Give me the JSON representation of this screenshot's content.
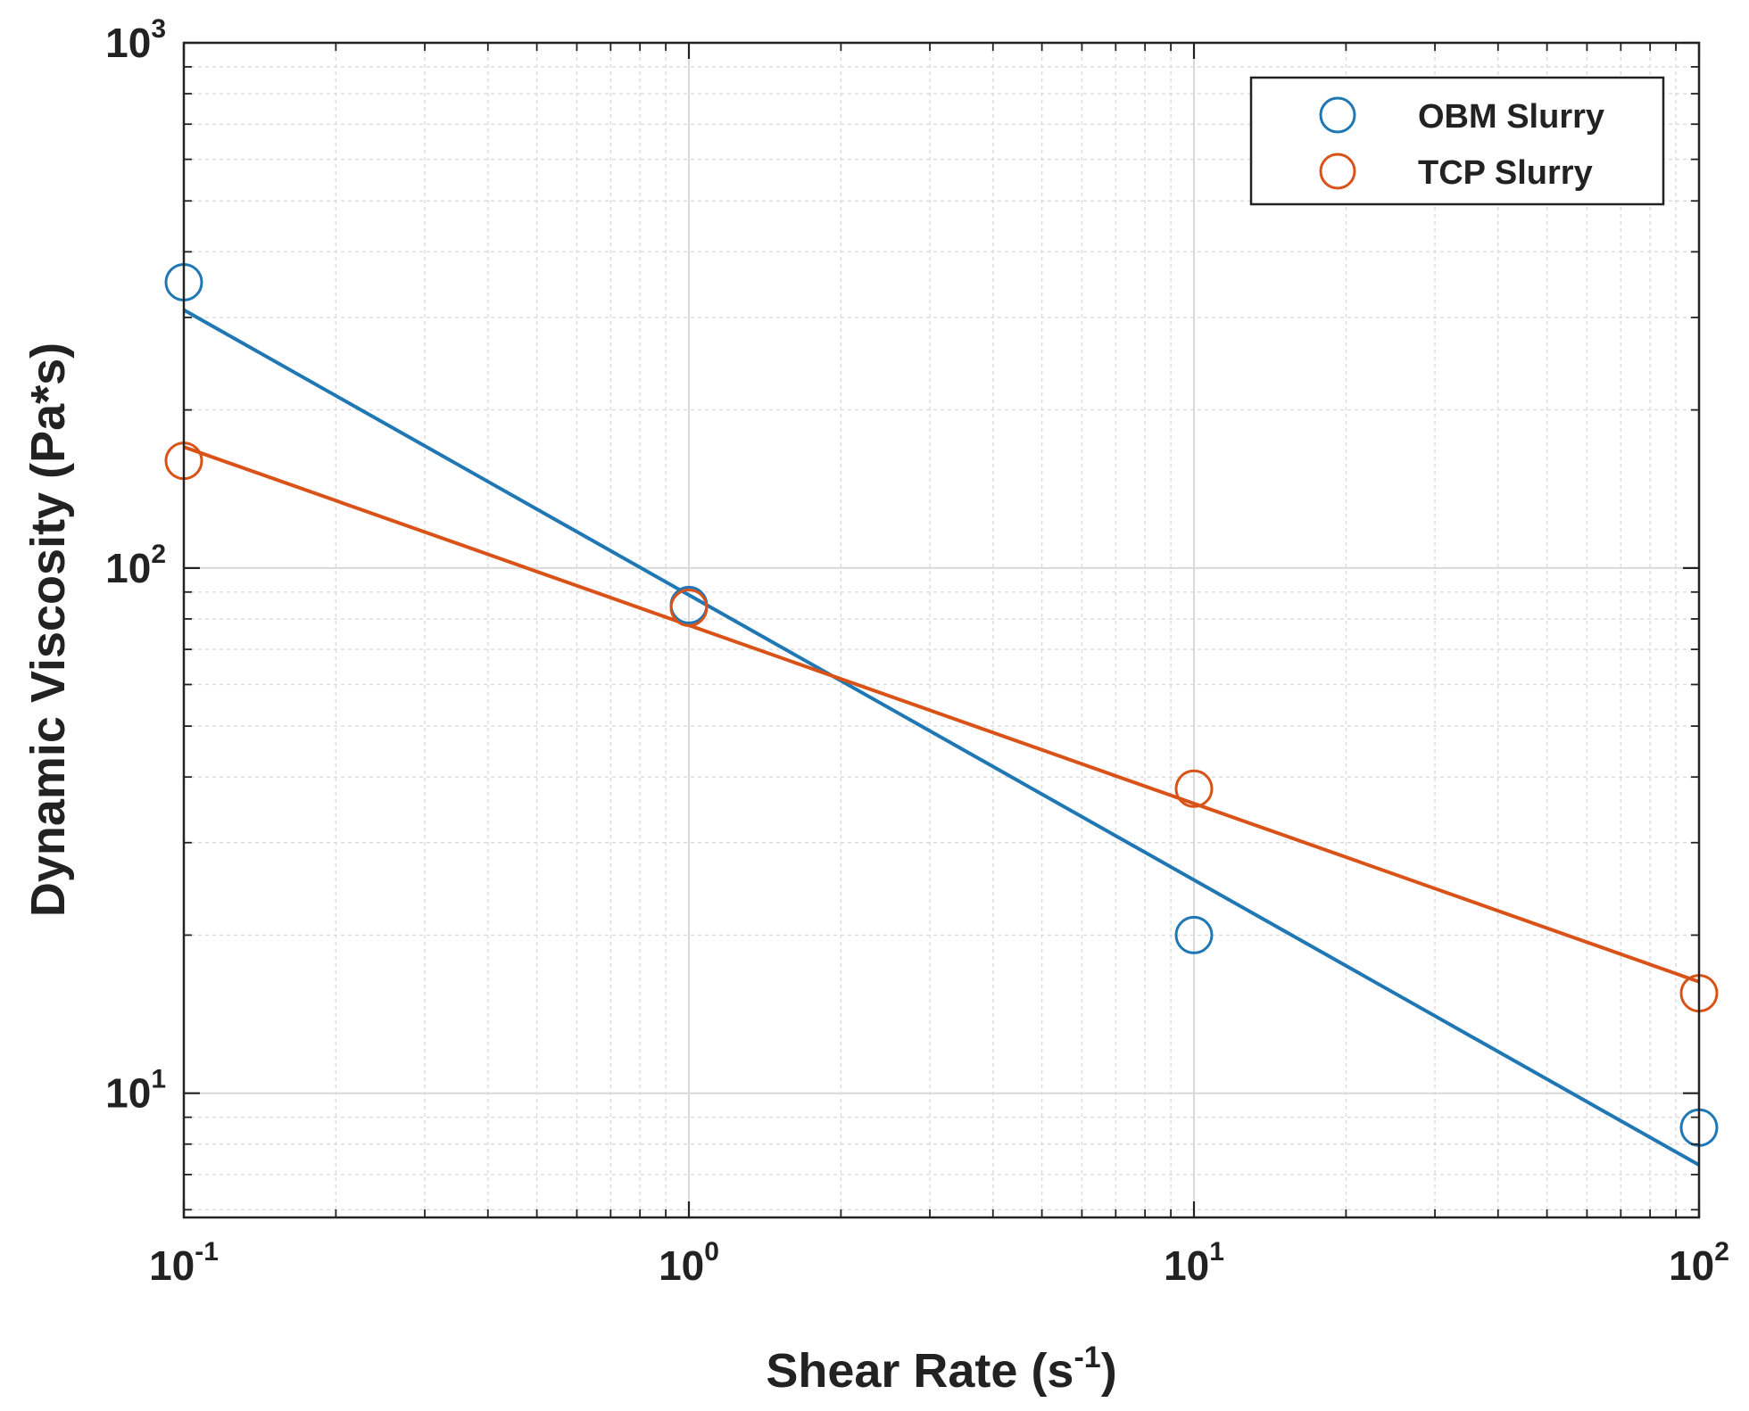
{
  "chart_data": {
    "type": "scatter",
    "title": "",
    "xlabel": "Shear Rate (s",
    "xlabel_exponent": "-1",
    "xlabel_suffix": ")",
    "ylabel": "Dynamic Viscosity (Pa*s)",
    "xscale": "log",
    "yscale": "log",
    "xlim": [
      0.1,
      100
    ],
    "ylim": [
      5.8,
      1000
    ],
    "grid": true,
    "minor_grid": true,
    "legend_position": "top-right",
    "x_ticks": [
      {
        "value": 0.1,
        "base": "10",
        "exp": "-1"
      },
      {
        "value": 1,
        "base": "10",
        "exp": "0"
      },
      {
        "value": 10,
        "base": "10",
        "exp": "1"
      },
      {
        "value": 100,
        "base": "10",
        "exp": "2"
      }
    ],
    "y_ticks": [
      {
        "value": 10,
        "base": "10",
        "exp": "1"
      },
      {
        "value": 100,
        "base": "10",
        "exp": "2"
      },
      {
        "value": 1000,
        "base": "10",
        "exp": "3"
      }
    ],
    "series": [
      {
        "name": "OBM Slurry",
        "color": "#1f77b4",
        "x": [
          0.1,
          1,
          10,
          100
        ],
        "y": [
          350,
          85,
          20,
          8.6
        ],
        "fit": {
          "x": [
            0.1,
            100
          ],
          "y": [
            310,
            7.3
          ]
        }
      },
      {
        "name": "TCP Slurry",
        "color": "#d95319",
        "x": [
          0.1,
          1,
          10,
          100
        ],
        "y": [
          160,
          84,
          38,
          15.5
        ],
        "fit": {
          "x": [
            0.1,
            100
          ],
          "y": [
            170,
            16.3
          ]
        }
      }
    ]
  }
}
